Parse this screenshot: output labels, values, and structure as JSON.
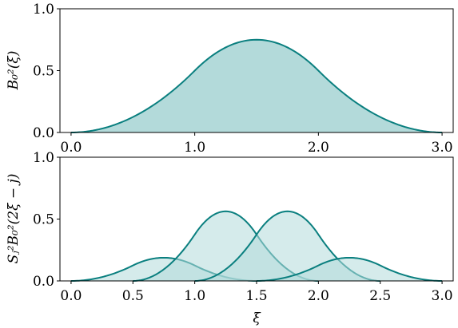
{
  "chart_data": [
    {
      "type": "area",
      "xlabel": "",
      "ylabel": "B₀²(ξ)",
      "xlim": [
        0,
        3
      ],
      "ylim": [
        0,
        1
      ],
      "xticks": [
        "0.0",
        "1.0",
        "2.0",
        "3.0"
      ],
      "xtick_values": [
        0,
        1,
        2,
        3
      ],
      "yticks": [
        "0.0",
        "0.5",
        "1.0"
      ],
      "ytick_values": [
        0,
        0.5,
        1
      ],
      "grid": false,
      "color": "#0a7f7f",
      "fill_color": "#b3dada",
      "series": [
        {
          "x": [
            0,
            0.25,
            0.5,
            0.75,
            1.0,
            1.25,
            1.5,
            1.75,
            2.0,
            2.25,
            2.5,
            2.75,
            3.0
          ],
          "values": [
            0,
            0.031,
            0.125,
            0.281,
            0.5,
            0.688,
            0.75,
            0.688,
            0.5,
            0.281,
            0.125,
            0.031,
            0
          ]
        }
      ]
    },
    {
      "type": "area",
      "xlabel": "ξ",
      "ylabel": "Sⱼ²B₀²(2ξ − j)",
      "xlim": [
        0,
        3
      ],
      "ylim": [
        0,
        1
      ],
      "xticks": [
        "0.0",
        "0.5",
        "1.0",
        "1.5",
        "2.0",
        "2.5",
        "3.0"
      ],
      "xtick_values": [
        0,
        0.5,
        1,
        1.5,
        2,
        2.5,
        3
      ],
      "yticks": [
        "0.0",
        "0.5",
        "1.0"
      ],
      "ytick_values": [
        0,
        0.5,
        1
      ],
      "grid": false,
      "color": "#0a7f7f",
      "fill_color": "#b3dada",
      "series": [
        {
          "x": [
            0,
            0.25,
            0.5,
            0.75,
            1.0,
            1.25,
            1.5
          ],
          "values": [
            0,
            0.0234,
            0.141,
            0.1875,
            0.141,
            0.0234,
            0
          ]
        },
        {
          "x": [
            0.5,
            0.75,
            1.0,
            1.25,
            1.5,
            1.75,
            2.0
          ],
          "values": [
            0,
            0.0703,
            0.422,
            0.5625,
            0.422,
            0.0703,
            0
          ]
        },
        {
          "x": [
            1.0,
            1.25,
            1.5,
            1.75,
            2.0,
            2.25,
            2.5
          ],
          "values": [
            0,
            0.0703,
            0.422,
            0.5625,
            0.422,
            0.0703,
            0
          ]
        },
        {
          "x": [
            1.5,
            1.75,
            2.0,
            2.25,
            2.5,
            2.75,
            3.0
          ],
          "values": [
            0,
            0.0234,
            0.141,
            0.1875,
            0.141,
            0.0234,
            0
          ]
        }
      ]
    }
  ]
}
